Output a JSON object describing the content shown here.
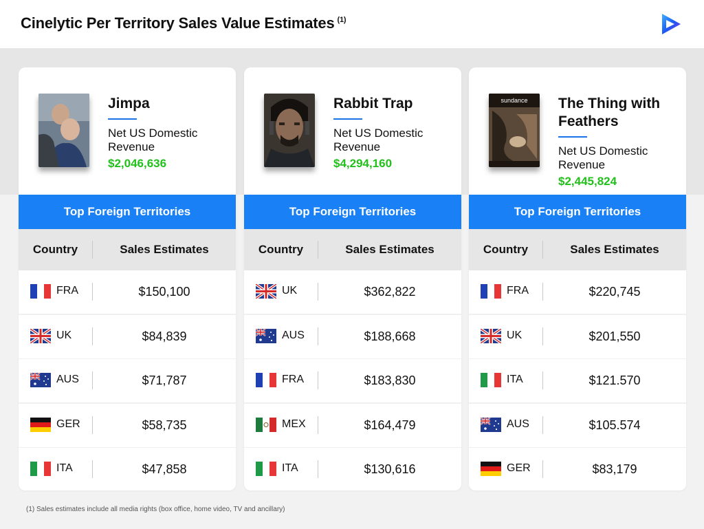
{
  "header": {
    "title": "Cinelytic Per Territory Sales Value Estimates",
    "title_sup": "(1)",
    "logo_icon": "play-logo-icon"
  },
  "cards": [
    {
      "title": "Jimpa",
      "revenue_label": "Net US Domestic Revenue",
      "revenue": "$2,046,636",
      "band": "Top Foreign Territories",
      "col_country": "Country",
      "col_sales": "Sales Estimates",
      "poster_text": "",
      "rows": [
        {
          "flag": "fra",
          "code": "FRA",
          "value": "$150,100"
        },
        {
          "flag": "uk",
          "code": "UK",
          "value": "$84,839"
        },
        {
          "flag": "aus",
          "code": "AUS",
          "value": "$71,787"
        },
        {
          "flag": "ger",
          "code": "GER",
          "value": "$58,735"
        },
        {
          "flag": "ita",
          "code": "ITA",
          "value": "$47,858"
        }
      ]
    },
    {
      "title": "Rabbit Trap",
      "revenue_label": "Net US Domestic Revenue",
      "revenue": "$4,294,160",
      "band": "Top Foreign Territories",
      "col_country": "Country",
      "col_sales": "Sales Estimates",
      "poster_text": "",
      "rows": [
        {
          "flag": "uk",
          "code": "UK",
          "value": "$362,822"
        },
        {
          "flag": "aus",
          "code": "AUS",
          "value": "$188,668"
        },
        {
          "flag": "fra",
          "code": "FRA",
          "value": "$183,830"
        },
        {
          "flag": "mex",
          "code": "MEX",
          "value": "$164,479"
        },
        {
          "flag": "ita",
          "code": "ITA",
          "value": "$130,616"
        }
      ]
    },
    {
      "title": "The Thing with Feathers",
      "revenue_label": "Net US Domestic Revenue",
      "revenue": "$2,445,824",
      "band": "Top Foreign Territories",
      "col_country": "Country",
      "col_sales": "Sales Estimates",
      "poster_text": "sundance",
      "rows": [
        {
          "flag": "fra",
          "code": "FRA",
          "value": "$220,745"
        },
        {
          "flag": "uk",
          "code": "UK",
          "value": "$201,550"
        },
        {
          "flag": "ita",
          "code": "ITA",
          "value": "$121.570"
        },
        {
          "flag": "aus",
          "code": "AUS",
          "value": "$105.574"
        },
        {
          "flag": "ger",
          "code": "GER",
          "value": "$83,179"
        }
      ]
    }
  ],
  "footnote": "(1) Sales estimates include all media rights (box office, home video, TV and ancillary)",
  "colors": {
    "accent": "#1a80f5",
    "revenue_green": "#22c01a"
  }
}
